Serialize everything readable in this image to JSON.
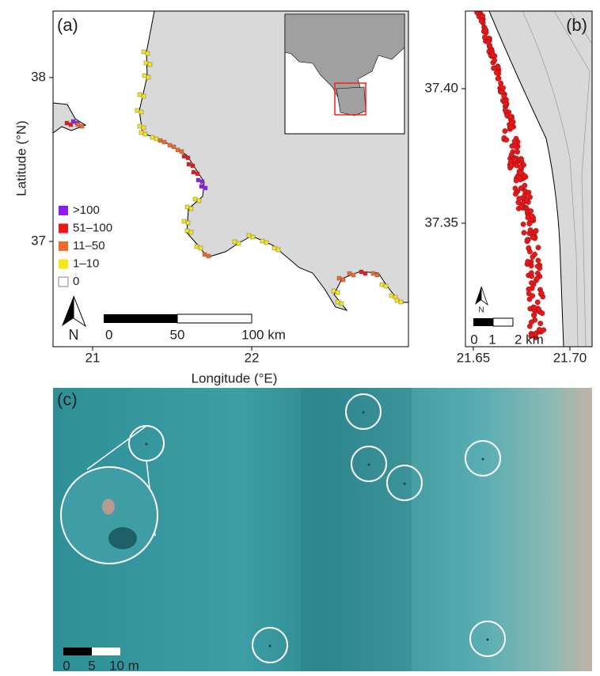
{
  "panel_a": {
    "label": "(a)",
    "x_axis_title": "Longitude (°E)",
    "y_axis_title": "Latitude (°N)",
    "xticks": [
      "21",
      "22"
    ],
    "yticks": [
      "38",
      "37"
    ],
    "legend": [
      {
        "label": ">100",
        "color": "#8f1cf0"
      },
      {
        "label": "51–100",
        "color": "#e8191c"
      },
      {
        "label": "11–50",
        "color": "#f26a2a"
      },
      {
        "label": "1–10",
        "color": "#f7e61b"
      },
      {
        "label": "0",
        "color": "#ffffff"
      }
    ],
    "north": "N",
    "scale_bar": [
      "0",
      "50",
      "100 km"
    ]
  },
  "panel_b": {
    "label": "(b)",
    "xticks": [
      "21.65",
      "21.70"
    ],
    "yticks": [
      "37.40",
      "37.35"
    ],
    "north": "N",
    "scale_bar": [
      "0",
      "1",
      "2 km"
    ]
  },
  "panel_c": {
    "label": "(c)",
    "scale_bar": [
      "0",
      "5",
      "10 m"
    ]
  }
}
